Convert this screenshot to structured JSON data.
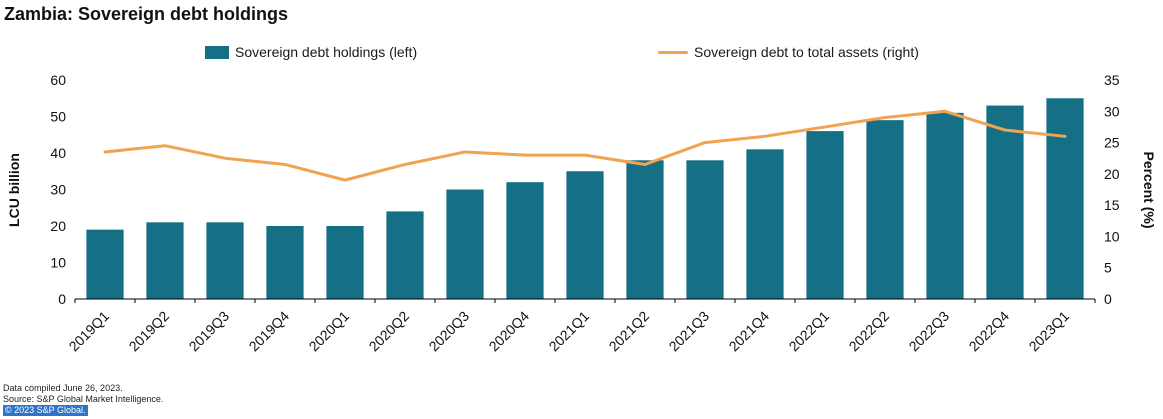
{
  "title": "Zambia: Sovereign debt holdings",
  "legend": [
    {
      "label": "Sovereign debt holdings (left)",
      "type": "bar",
      "color": "#156f85"
    },
    {
      "label": "Sovereign debt to total assets (right)",
      "type": "line",
      "color": "#f0a350"
    }
  ],
  "footer": {
    "line1": "Data compiled June 26, 2023.",
    "line2": "Source: S&P Global Market Intelligence.",
    "line3": "© 2023 S&P Global.",
    "highlight_color": "#2e74c9"
  },
  "chart_data": {
    "type": "bar",
    "subtype": "bar+line dual axis",
    "title": "Zambia: Sovereign debt holdings",
    "categories": [
      "2019Q1",
      "2019Q2",
      "2019Q3",
      "2019Q4",
      "2020Q1",
      "2020Q2",
      "2020Q3",
      "2020Q4",
      "2021Q1",
      "2021Q2",
      "2021Q3",
      "2021Q4",
      "2022Q1",
      "2022Q2",
      "2022Q3",
      "2022Q4",
      "2023Q1"
    ],
    "series": [
      {
        "name": "Sovereign debt holdings (left)",
        "type": "bar",
        "axis": "left",
        "color": "#156f85",
        "values": [
          19,
          21,
          21,
          20,
          20,
          24,
          30,
          32,
          35,
          38,
          38,
          41,
          46,
          49,
          51,
          53,
          55
        ]
      },
      {
        "name": "Sovereign debt to total assets (right)",
        "type": "line",
        "axis": "right",
        "color": "#f0a350",
        "values": [
          23.5,
          24.5,
          22.5,
          21.5,
          19,
          21.5,
          23.5,
          23,
          23,
          21.5,
          25,
          26,
          27.5,
          29,
          30,
          27,
          26
        ]
      }
    ],
    "left_axis": {
      "label": "LCU billion",
      "min": 0,
      "max": 60,
      "ticks": [
        0,
        10,
        20,
        30,
        40,
        50,
        60
      ]
    },
    "right_axis": {
      "label": "Percent (%)",
      "min": 0,
      "max": 35,
      "ticks": [
        0,
        5,
        10,
        15,
        20,
        25,
        30,
        35
      ]
    },
    "grid": false,
    "legend_position": "top"
  }
}
